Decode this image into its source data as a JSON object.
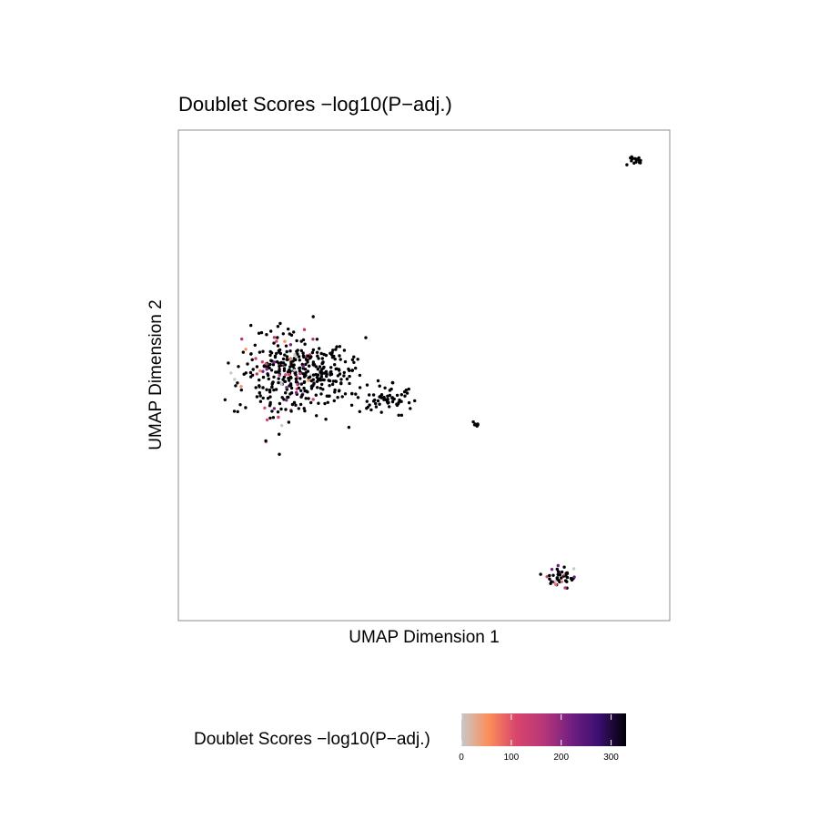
{
  "chart_data": {
    "type": "scatter",
    "title": "Doublet Scores −log10(P−adj.)",
    "xlabel": "UMAP Dimension 1",
    "ylabel": "UMAP Dimension 2",
    "xlim": [
      0,
      100
    ],
    "ylim": [
      0,
      100
    ],
    "grid": false,
    "point_color_scale": {
      "title": "Doublet Scores −log10(P−adj.)",
      "range": [
        0,
        330
      ],
      "ticks": [
        0,
        100,
        200,
        300
      ],
      "tick_labels": [
        "0",
        "100",
        "200",
        "300"
      ],
      "colors": [
        "#c8c8c8",
        "#fc8d59",
        "#d8456c",
        "#b73779",
        "#721f81",
        "#3b0f70",
        "#000004"
      ],
      "legend_position": "bottom"
    },
    "clusters": [
      {
        "id": "main",
        "center": [
          24,
          50
        ],
        "spread": [
          12,
          8
        ],
        "n": 430,
        "highlight_region": [
          10,
          22
        ],
        "highlight_share": 0.2
      },
      {
        "id": "tail",
        "center": [
          42,
          45
        ],
        "spread": [
          6,
          3
        ],
        "n": 60
      },
      {
        "id": "small",
        "center": [
          60.5,
          40
        ],
        "spread": [
          1,
          0.6
        ],
        "n": 10
      },
      {
        "id": "top-right",
        "center": [
          93,
          94
        ],
        "spread": [
          2,
          1
        ],
        "n": 20,
        "highlight_share": 0.05
      },
      {
        "id": "bottom-right",
        "center": [
          78,
          9
        ],
        "spread": [
          3,
          2.5
        ],
        "n": 45,
        "highlight_share": 0.25
      }
    ]
  },
  "legend": {
    "title": "Doublet Scores −log10(P−adj.)"
  }
}
